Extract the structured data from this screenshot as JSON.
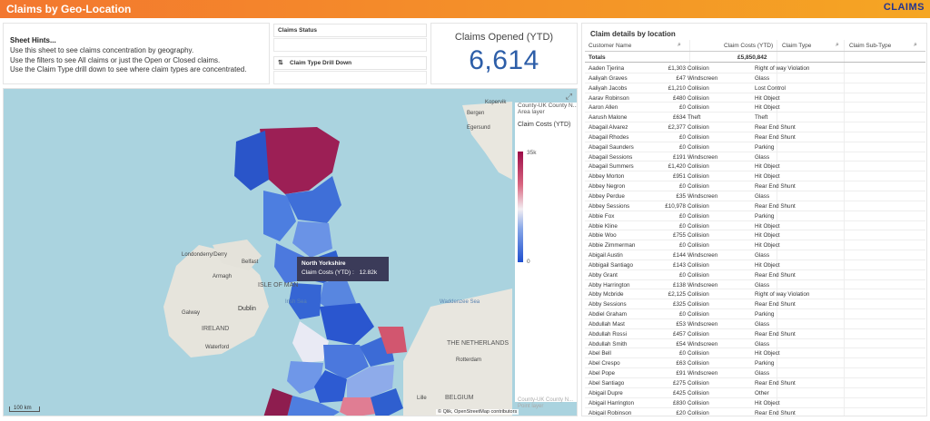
{
  "app": {
    "title": "Claims by Geo-Location",
    "logo": "CLAIMS"
  },
  "hints": {
    "heading": "Sheet Hints...",
    "lines": [
      "Use this sheet to see claims concentration by geography.",
      "Use the filters to see All claims or just the Open or Closed claims.",
      "Use the Claim Type drill down to see where claim types are concentrated."
    ]
  },
  "filters": {
    "status": "Claims Status",
    "drill": "Claim Type Drill Down",
    "drill_icon": "drilldown-icon"
  },
  "kpi": {
    "label": "Claims Opened (YTD)",
    "value": "6,614"
  },
  "map": {
    "expand_icon": "expand-icon",
    "layer_title": "County-UK County N... Area layer",
    "legend_title": "Claim Costs (YTD)",
    "legend_max": "35k",
    "legend_min": "0",
    "point_layer": "County-UK County N... Point layer",
    "scale": "100 km",
    "attribution": "© Qlik, OpenStreetMap contributors",
    "labels": [
      "Bergen",
      "Egersund",
      "Kopervik",
      "Londonderry/Derry",
      "Armagh",
      "Belfast",
      "ISLE OF MAN",
      "Irish Sea",
      "Galway",
      "Dublin",
      "IRELAND",
      "Waterford",
      "THE NETHERLANDS",
      "Rotterdam",
      "Lille",
      "BELGIUM",
      "Waddenzee Sea"
    ],
    "tooltip": {
      "name": "North Yorkshire",
      "label": "Claim Costs (YTD) :",
      "value": "12.82k"
    },
    "colors": {
      "high": "#9c0c48",
      "low": "#1f4fcf"
    }
  },
  "table": {
    "title": "Claim details by location",
    "columns": [
      "Customer Name",
      "Claim Costs (YTD)",
      "Claim Type",
      "Claim Sub-Type"
    ],
    "totals": {
      "label": "Totals",
      "cost": "£5,850,842"
    },
    "rows": [
      [
        "Aaden Tjerina",
        "£1,303",
        "Collision",
        "Right of way Violation"
      ],
      [
        "Aaliyah Graves",
        "£47",
        "Windscreen",
        "Glass"
      ],
      [
        "Aaliyah Jacobs",
        "£1,210",
        "Collision",
        "Lost Control"
      ],
      [
        "Aarav Robinson",
        "£480",
        "Collision",
        "Hit Object"
      ],
      [
        "Aaron Allen",
        "£0",
        "Collision",
        "Hit Object"
      ],
      [
        "Aarush Malone",
        "£634",
        "Theft",
        "Theft"
      ],
      [
        "Abagail Alvarez",
        "£2,377",
        "Collision",
        "Rear End Shunt"
      ],
      [
        "Abagail Rhodes",
        "£0",
        "Collision",
        "Rear End Shunt"
      ],
      [
        "Abagail Saunders",
        "£0",
        "Collision",
        "Parking"
      ],
      [
        "Abagail Sessions",
        "£191",
        "Windscreen",
        "Glass"
      ],
      [
        "Abagail Summers",
        "£1,420",
        "Collision",
        "Hit Object"
      ],
      [
        "Abbey Morton",
        "£951",
        "Collision",
        "Hit Object"
      ],
      [
        "Abbey Negron",
        "£0",
        "Collision",
        "Rear End Shunt"
      ],
      [
        "Abbey Perdue",
        "£35",
        "Windscreen",
        "Glass"
      ],
      [
        "Abbey Sessions",
        "£10,978",
        "Collision",
        "Rear End Shunt"
      ],
      [
        "Abbie Fox",
        "£0",
        "Collision",
        "Parking"
      ],
      [
        "Abbie Kline",
        "£0",
        "Collision",
        "Hit Object"
      ],
      [
        "Abbie Woo",
        "£755",
        "Collision",
        "Hit Object"
      ],
      [
        "Abbie Zimmerman",
        "£0",
        "Collision",
        "Hit Object"
      ],
      [
        "Abigail Austin",
        "£144",
        "Windscreen",
        "Glass"
      ],
      [
        "Abbigail Santiago",
        "£143",
        "Collision",
        "Hit Object"
      ],
      [
        "Abby Grant",
        "£0",
        "Collision",
        "Rear End Shunt"
      ],
      [
        "Abby Harrington",
        "£138",
        "Windscreen",
        "Glass"
      ],
      [
        "Abby Mcbride",
        "£2,125",
        "Collision",
        "Right of way Violation"
      ],
      [
        "Abby Sessions",
        "£325",
        "Collision",
        "Rear End Shunt"
      ],
      [
        "Abdiel Graham",
        "£0",
        "Collision",
        "Parking"
      ],
      [
        "Abdullah Mast",
        "£53",
        "Windscreen",
        "Glass"
      ],
      [
        "Abdullah Rossi",
        "£457",
        "Collision",
        "Rear End Shunt"
      ],
      [
        "Abdullah Smith",
        "£54",
        "Windscreen",
        "Glass"
      ],
      [
        "Abel Bell",
        "£0",
        "Collision",
        "Hit Object"
      ],
      [
        "Abel Crespo",
        "£63",
        "Collision",
        "Parking"
      ],
      [
        "Abel Pope",
        "£91",
        "Windscreen",
        "Glass"
      ],
      [
        "Abel Santiago",
        "£275",
        "Collision",
        "Rear End Shunt"
      ],
      [
        "Abigail Dupre",
        "£425",
        "Collision",
        "Other"
      ],
      [
        "Abigail Harrington",
        "£830",
        "Collision",
        "Hit Object"
      ],
      [
        "Abigail Robinson",
        "£20",
        "Collision",
        "Rear End Shunt"
      ]
    ]
  }
}
